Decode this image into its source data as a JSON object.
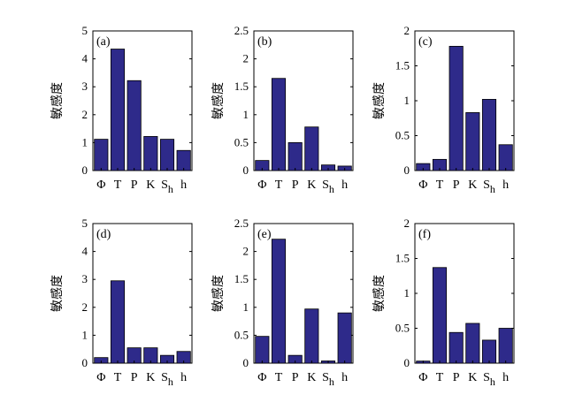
{
  "chart_data": [
    {
      "type": "bar",
      "panel_label": "(a)",
      "ylabel": "敏感度",
      "categories": [
        "Φ",
        "T",
        "P",
        "K",
        "S_h",
        "h"
      ],
      "values": [
        1.12,
        4.35,
        3.22,
        1.22,
        1.12,
        0.72
      ],
      "ylim": [
        0,
        5
      ],
      "yticks": [
        "0",
        "1",
        "2",
        "3",
        "4",
        "5"
      ],
      "bar_color": "#2e2a8a"
    },
    {
      "type": "bar",
      "panel_label": "(b)",
      "ylabel": "敏感度",
      "categories": [
        "Φ",
        "T",
        "P",
        "K",
        "S_h",
        "h"
      ],
      "values": [
        0.18,
        1.65,
        0.5,
        0.78,
        0.1,
        0.08
      ],
      "ylim": [
        0,
        2.5
      ],
      "yticks": [
        "0",
        "0.5",
        "1",
        "1.5",
        "2",
        "2.5"
      ],
      "bar_color": "#2e2a8a"
    },
    {
      "type": "bar",
      "panel_label": "(c)",
      "ylabel": "敏感度",
      "categories": [
        "Φ",
        "T",
        "P",
        "K",
        "S_h",
        "h"
      ],
      "values": [
        0.1,
        0.16,
        1.78,
        0.83,
        1.02,
        0.37
      ],
      "ylim": [
        0,
        2
      ],
      "yticks": [
        "0",
        "0.5",
        "1",
        "1.5",
        "2"
      ],
      "bar_color": "#2e2a8a"
    },
    {
      "type": "bar",
      "panel_label": "(d)",
      "ylabel": "敏感度",
      "categories": [
        "Φ",
        "T",
        "P",
        "K",
        "S_h",
        "h"
      ],
      "values": [
        0.2,
        2.95,
        0.55,
        0.55,
        0.28,
        0.42
      ],
      "ylim": [
        0,
        5
      ],
      "yticks": [
        "0",
        "1",
        "2",
        "3",
        "4",
        "5"
      ],
      "bar_color": "#2e2a8a"
    },
    {
      "type": "bar",
      "panel_label": "(e)",
      "ylabel": "敏感度",
      "categories": [
        "Φ",
        "T",
        "P",
        "K",
        "S_h",
        "h"
      ],
      "values": [
        0.48,
        2.22,
        0.14,
        0.97,
        0.04,
        0.9
      ],
      "ylim": [
        0,
        2.5
      ],
      "yticks": [
        "0",
        "0.5",
        "1",
        "1.5",
        "2",
        "2.5"
      ],
      "bar_color": "#2e2a8a"
    },
    {
      "type": "bar",
      "panel_label": "(f)",
      "ylabel": "敏感度",
      "categories": [
        "Φ",
        "T",
        "P",
        "K",
        "S_h",
        "h"
      ],
      "values": [
        0.03,
        1.37,
        0.44,
        0.57,
        0.33,
        0.5
      ],
      "ylim": [
        0,
        2
      ],
      "yticks": [
        "0",
        "0.5",
        "1",
        "1.5",
        "2"
      ],
      "bar_color": "#2e2a8a"
    }
  ]
}
